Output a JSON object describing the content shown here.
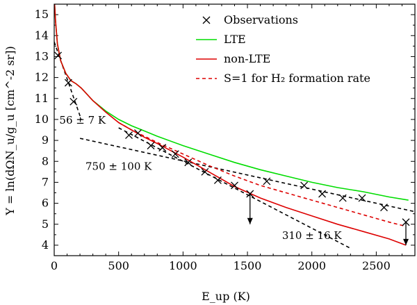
{
  "chart_data": {
    "type": "line",
    "title": "",
    "xlabel": "E_up (K)",
    "ylabel": "Y = ln(dΩN_u/g_u [cm^-2 sr])",
    "xlim": [
      0,
      2800
    ],
    "ylim": [
      3.5,
      15.5
    ],
    "xticks": [
      0,
      500,
      1000,
      1500,
      2000,
      2500
    ],
    "yticks": [
      4,
      5,
      6,
      7,
      8,
      9,
      10,
      11,
      12,
      13,
      14,
      15
    ],
    "xtick_labels": [
      "0",
      "500",
      "1000",
      "1500",
      "2000",
      "2500"
    ],
    "ytick_labels": [
      "4",
      "5",
      "6",
      "7",
      "8",
      "9",
      "10",
      "11",
      "12",
      "13",
      "14",
      "15"
    ],
    "legend": {
      "location": "top-right",
      "entries": [
        "Observations",
        "LTE",
        "non-LTE",
        "S=1 for H₂ formation rate"
      ]
    },
    "observations": {
      "name": "Observations",
      "marker": "x",
      "color": "#000000",
      "points": [
        {
          "x": 30,
          "y": 13.05
        },
        {
          "x": 110,
          "y": 11.75
        },
        {
          "x": 150,
          "y": 10.85
        },
        {
          "x": 580,
          "y": 9.25
        },
        {
          "x": 650,
          "y": 9.35
        },
        {
          "x": 750,
          "y": 8.75
        },
        {
          "x": 840,
          "y": 8.65
        },
        {
          "x": 940,
          "y": 8.35
        },
        {
          "x": 1040,
          "y": 7.95
        },
        {
          "x": 1170,
          "y": 7.5
        },
        {
          "x": 1270,
          "y": 7.1
        },
        {
          "x": 1400,
          "y": 6.85
        },
        {
          "x": 1520,
          "y": 6.45
        },
        {
          "x": 1650,
          "y": 7.05
        },
        {
          "x": 1940,
          "y": 6.85
        },
        {
          "x": 2080,
          "y": 6.45
        },
        {
          "x": 2240,
          "y": 6.25
        },
        {
          "x": 2390,
          "y": 6.25
        },
        {
          "x": 2560,
          "y": 5.8
        },
        {
          "x": 2730,
          "y": 5.1
        }
      ],
      "upper_limits": [
        {
          "x": 1520,
          "y_from": 6.45,
          "y_to": 5.0
        },
        {
          "x": 2730,
          "y_from": 5.1,
          "y_to": 4.0
        }
      ]
    },
    "series": [
      {
        "name": "LTE",
        "color": "#00dd00",
        "dash": "solid",
        "x": [
          3,
          10,
          25,
          50,
          90,
          130,
          170,
          210,
          300,
          400,
          500,
          600,
          700,
          800,
          1000,
          1200,
          1400,
          1600,
          1800,
          2000,
          2200,
          2400,
          2600,
          2750
        ],
        "y": [
          15.5,
          14.7,
          13.6,
          12.8,
          12.2,
          11.85,
          11.7,
          11.5,
          10.9,
          10.4,
          10.0,
          9.7,
          9.45,
          9.2,
          8.75,
          8.35,
          7.95,
          7.6,
          7.3,
          7.0,
          6.75,
          6.55,
          6.3,
          6.15
        ]
      },
      {
        "name": "non-LTE",
        "color": "#dd0000",
        "dash": "solid",
        "x": [
          3,
          10,
          25,
          50,
          90,
          130,
          170,
          210,
          300,
          400,
          500,
          600,
          700,
          800,
          1000,
          1200,
          1400,
          1600,
          1800,
          2000,
          2200,
          2400,
          2600,
          2730
        ],
        "y": [
          15.5,
          14.7,
          13.6,
          12.8,
          12.2,
          11.85,
          11.7,
          11.5,
          10.9,
          10.35,
          9.85,
          9.5,
          9.15,
          8.85,
          8.2,
          7.5,
          6.8,
          6.25,
          5.8,
          5.4,
          5.0,
          4.65,
          4.3,
          4.0
        ]
      },
      {
        "name": "S=1 for H₂ formation rate",
        "color": "#dd0000",
        "dash": "dashed",
        "x": [
          500,
          600,
          700,
          800,
          1000,
          1200,
          1400,
          1600,
          1800,
          2000,
          2200,
          2400,
          2600,
          2730
        ],
        "y": [
          9.85,
          9.5,
          9.2,
          8.9,
          8.35,
          7.8,
          7.3,
          6.85,
          6.5,
          6.15,
          5.8,
          5.45,
          5.1,
          4.9
        ]
      }
    ],
    "fits": [
      {
        "name": "56 ± 7 K fit",
        "color": "#000000",
        "dash": "dashed",
        "x": [
          0,
          210
        ],
        "y": [
          13.7,
          10.0
        ]
      },
      {
        "name": "750 ± 100 K fit",
        "color": "#000000",
        "dash": "dashed",
        "x": [
          200,
          2800
        ],
        "y": [
          9.1,
          5.6
        ]
      },
      {
        "name": "310 ± 16 K fit",
        "color": "#000000",
        "dash": "dashed",
        "x": [
          500,
          2300
        ],
        "y": [
          9.6,
          3.85
        ]
      }
    ],
    "annotations": [
      {
        "text": "56 ± 7 K",
        "x": 220,
        "y": 9.8
      },
      {
        "text": "750 ± 100 K",
        "x": 500,
        "y": 7.6
      },
      {
        "text": "310 ± 16 K",
        "x": 2000,
        "y": 4.3
      }
    ]
  }
}
